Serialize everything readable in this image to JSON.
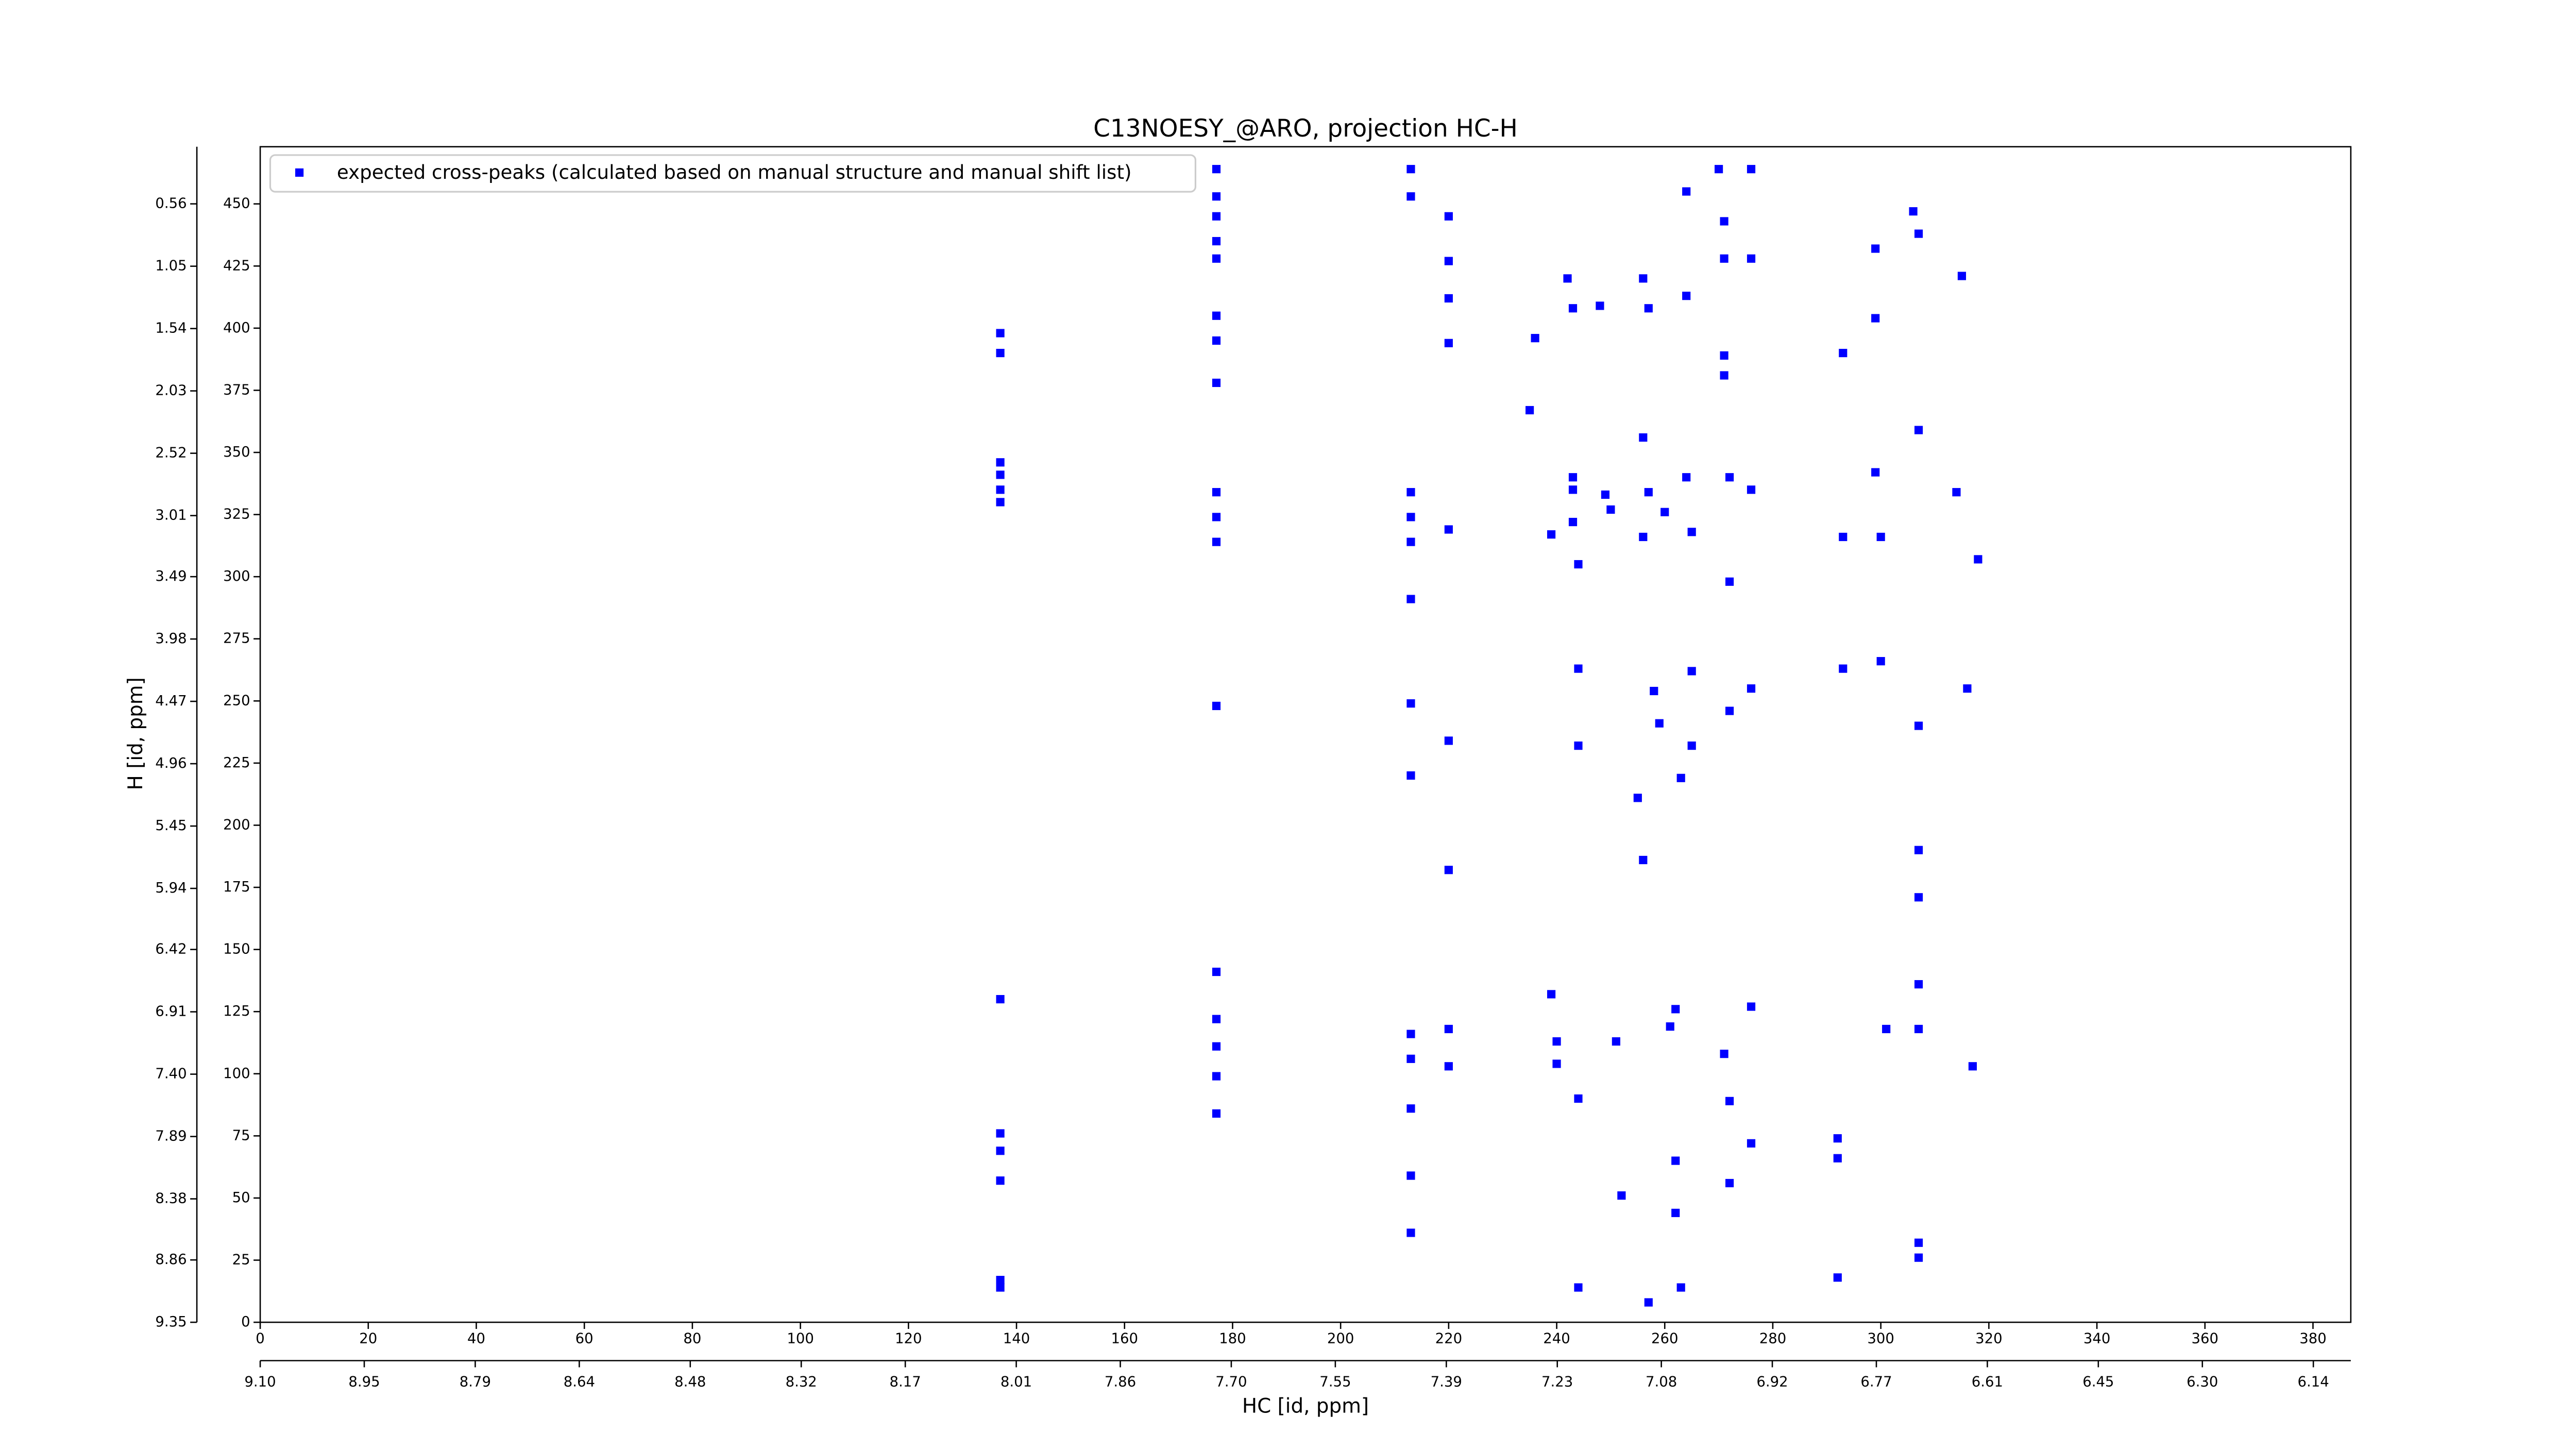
{
  "chart_data": {
    "type": "scatter",
    "title": "C13NOESY_@ARO, projection HC-H",
    "xlabel": "HC [id, ppm]",
    "ylabel": "H [id, ppm]",
    "xlim": [
      0,
      387
    ],
    "ylim": [
      0,
      473
    ],
    "xticks": [
      0,
      20,
      40,
      60,
      80,
      100,
      120,
      140,
      160,
      180,
      200,
      220,
      240,
      260,
      280,
      300,
      320,
      340,
      360,
      380
    ],
    "yticks": [
      0,
      25,
      50,
      75,
      100,
      125,
      150,
      175,
      200,
      225,
      250,
      275,
      300,
      325,
      350,
      375,
      400,
      425,
      450
    ],
    "x2lim": [
      9.1,
      6.086
    ],
    "x2ticks": [
      {
        "value": 9.1,
        "label": "9.10"
      },
      {
        "value": 8.95,
        "label": "8.95"
      },
      {
        "value": 8.79,
        "label": "8.79"
      },
      {
        "value": 8.64,
        "label": "8.64"
      },
      {
        "value": 8.48,
        "label": "8.48"
      },
      {
        "value": 8.32,
        "label": "8.32"
      },
      {
        "value": 8.17,
        "label": "8.17"
      },
      {
        "value": 8.01,
        "label": "8.01"
      },
      {
        "value": 7.86,
        "label": "7.86"
      },
      {
        "value": 7.7,
        "label": "7.70"
      },
      {
        "value": 7.55,
        "label": "7.55"
      },
      {
        "value": 7.39,
        "label": "7.39"
      },
      {
        "value": 7.23,
        "label": "7.23"
      },
      {
        "value": 7.08,
        "label": "7.08"
      },
      {
        "value": 6.92,
        "label": "6.92"
      },
      {
        "value": 6.77,
        "label": "6.77"
      },
      {
        "value": 6.61,
        "label": "6.61"
      },
      {
        "value": 6.45,
        "label": "6.45"
      },
      {
        "value": 6.3,
        "label": "6.30"
      },
      {
        "value": 6.14,
        "label": "6.14"
      }
    ],
    "y2lim": [
      9.35,
      0.111
    ],
    "y2ticks": [
      9.35,
      8.86,
      8.38,
      7.89,
      {
        "value": 7.4,
        "label": "7.40"
      },
      6.91,
      6.42,
      5.94,
      5.45,
      4.96,
      4.47,
      3.98,
      3.49,
      3.01,
      2.52,
      2.03,
      1.54,
      1.05,
      0.56
    ],
    "legend": "upper left",
    "series": [
      {
        "name": "expected cross-peaks (calculated based on manual structure and manual shift list)",
        "color": "#0000ff",
        "x": [
          137,
          137,
          137,
          137,
          137,
          137,
          137,
          137,
          137,
          137,
          137,
          137,
          177,
          177,
          177,
          177,
          177,
          177,
          177,
          177,
          177,
          177,
          177,
          177,
          177,
          177,
          177,
          177,
          177,
          213,
          213,
          213,
          213,
          213,
          213,
          213,
          213,
          213,
          213,
          213,
          213,
          213,
          220,
          220,
          220,
          220,
          220,
          220,
          220,
          220,
          220,
          236,
          235,
          239,
          239,
          240,
          240,
          242,
          243,
          243,
          243,
          243,
          244,
          244,
          244,
          244,
          244,
          248,
          249,
          250,
          251,
          252,
          256,
          257,
          256,
          257,
          256,
          255,
          256,
          257,
          258,
          259,
          260,
          261,
          262,
          262,
          262,
          263,
          263,
          264,
          264,
          264,
          265,
          265,
          265,
          270,
          271,
          271,
          271,
          271,
          272,
          272,
          272,
          271,
          272,
          272,
          276,
          276,
          276,
          276,
          276,
          276,
          293,
          293,
          293,
          292,
          292,
          292,
          299,
          299,
          299,
          300,
          300,
          301,
          306,
          307,
          307,
          307,
          307,
          307,
          307,
          307,
          307,
          307,
          314,
          315,
          316,
          317,
          318
        ],
        "y": [
          398,
          390,
          346,
          341,
          335,
          330,
          130,
          76,
          69,
          57,
          17,
          14,
          464,
          453,
          445,
          435,
          428,
          405,
          395,
          378,
          334,
          324,
          314,
          248,
          141,
          122,
          111,
          99,
          84,
          464,
          453,
          334,
          324,
          314,
          291,
          249,
          220,
          116,
          106,
          86,
          59,
          36,
          445,
          427,
          412,
          394,
          319,
          234,
          182,
          118,
          103,
          396,
          367,
          317,
          132,
          113,
          104,
          420,
          408,
          340,
          335,
          322,
          305,
          263,
          232,
          90,
          14,
          409,
          333,
          327,
          113,
          51,
          420,
          408,
          356,
          334,
          316,
          211,
          186,
          8,
          254,
          241,
          326,
          119,
          126,
          65,
          44,
          219,
          14,
          455,
          413,
          340,
          262,
          232,
          318,
          464,
          443,
          428,
          389,
          381,
          340,
          298,
          246,
          108,
          89,
          56,
          464,
          428,
          335,
          255,
          127,
          72,
          390,
          316,
          263,
          74,
          66,
          18,
          432,
          404,
          342,
          316,
          266,
          118,
          447,
          438,
          359,
          240,
          190,
          171,
          136,
          118,
          32,
          26,
          334,
          421,
          255,
          103,
          307
        ]
      }
    ]
  }
}
